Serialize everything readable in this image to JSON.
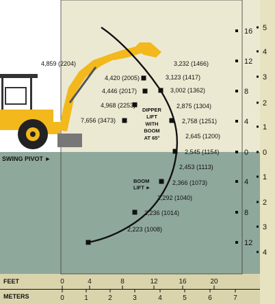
{
  "colors": {
    "upper_bg": "#ece9d2",
    "lower_bg": "#8fa89c",
    "right_strip": "#e7e2bf",
    "bottom_band": "#d9d4ac",
    "machine_yellow": "#f2b81c",
    "curve": "#111111"
  },
  "feet_scale_right": [
    "16",
    "12",
    "8",
    "4",
    "0",
    "4",
    "8",
    "12"
  ],
  "meters_scale_right": [
    "5",
    "4",
    "3",
    "2",
    "1",
    "0",
    "1",
    "2",
    "3",
    "4"
  ],
  "bottom_axis": {
    "feet_label": "FEET",
    "meters_label": "METERS",
    "feet_ticks": [
      "0",
      "4",
      "8",
      "12",
      "16",
      "20"
    ],
    "meters_ticks": [
      "0",
      "1",
      "2",
      "3",
      "4",
      "5",
      "6",
      "7"
    ]
  },
  "side_labels": {
    "swing_pivot": "SWING PIVOT ►"
  },
  "annotations": {
    "dipper_lift": [
      "DIPPER",
      "LIFT",
      "WITH",
      "BOOM",
      "AT 65°"
    ],
    "boom_lift": [
      "BOOM",
      "LIFT ►"
    ]
  },
  "dipper_points": [
    {
      "label": "4,859 (2204)"
    },
    {
      "label": "4,420 (2005)"
    },
    {
      "label": "4,446 (2017)"
    },
    {
      "label": "4,968 (2253)"
    },
    {
      "label": "7,656 (3473)"
    }
  ],
  "boom_points": [
    {
      "label": "3,232 (1466)"
    },
    {
      "label": "3,123 (1417)"
    },
    {
      "label": "3,002 (1362)"
    },
    {
      "label": "2,875 (1304)"
    },
    {
      "label": "2,758 (1251)"
    },
    {
      "label": "2,645 (1200)"
    },
    {
      "label": "2,545 (1154)"
    },
    {
      "label": "2,453 (1113)"
    },
    {
      "label": "2,366 (1073)"
    },
    {
      "label": "2,292 (1040)"
    },
    {
      "label": "2,236 (1014)"
    },
    {
      "label": "2,223 (1008)"
    }
  ]
}
